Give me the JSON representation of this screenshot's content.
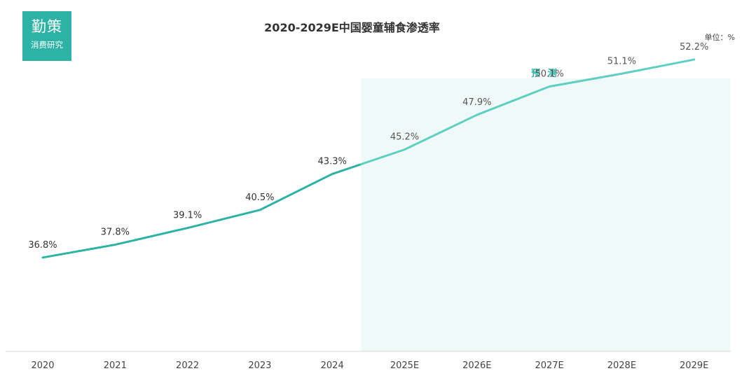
{
  "logo": {
    "main": "勤策",
    "sub": "消费研究"
  },
  "unit_label": "单位：%",
  "colors": {
    "line_actual": "#2db3a6",
    "line_forecast": "#5fcfc3",
    "forecast_band": "#effaf8",
    "label_actual": "#333333",
    "label_forecast": "#555555",
    "axis": "#d9d9d9"
  },
  "chart_data": {
    "type": "line",
    "title": "2020-2029E中国婴童辅食渗透率",
    "xlabel": "",
    "ylabel": "",
    "unit": "%",
    "categories": [
      "2020",
      "2021",
      "2022",
      "2023",
      "2024",
      "2025E",
      "2026E",
      "2027E",
      "2028E",
      "2029E"
    ],
    "series": [
      {
        "values": [
          36.8,
          37.8,
          39.1,
          40.5,
          43.3,
          45.2,
          47.9,
          50.1,
          51.1,
          52.2
        ]
      }
    ],
    "data_labels": [
      "36.8%",
      "37.8%",
      "39.1%",
      "40.5%",
      "43.3%",
      "45.2%",
      "47.9%",
      "50.1%",
      "51.1%",
      "52.2%"
    ],
    "forecast_region": {
      "label": "预 测",
      "from_category": "2025E",
      "to_category": "2029E"
    },
    "ylim": [
      29.5,
      54
    ],
    "grid": false,
    "legend": "none"
  }
}
